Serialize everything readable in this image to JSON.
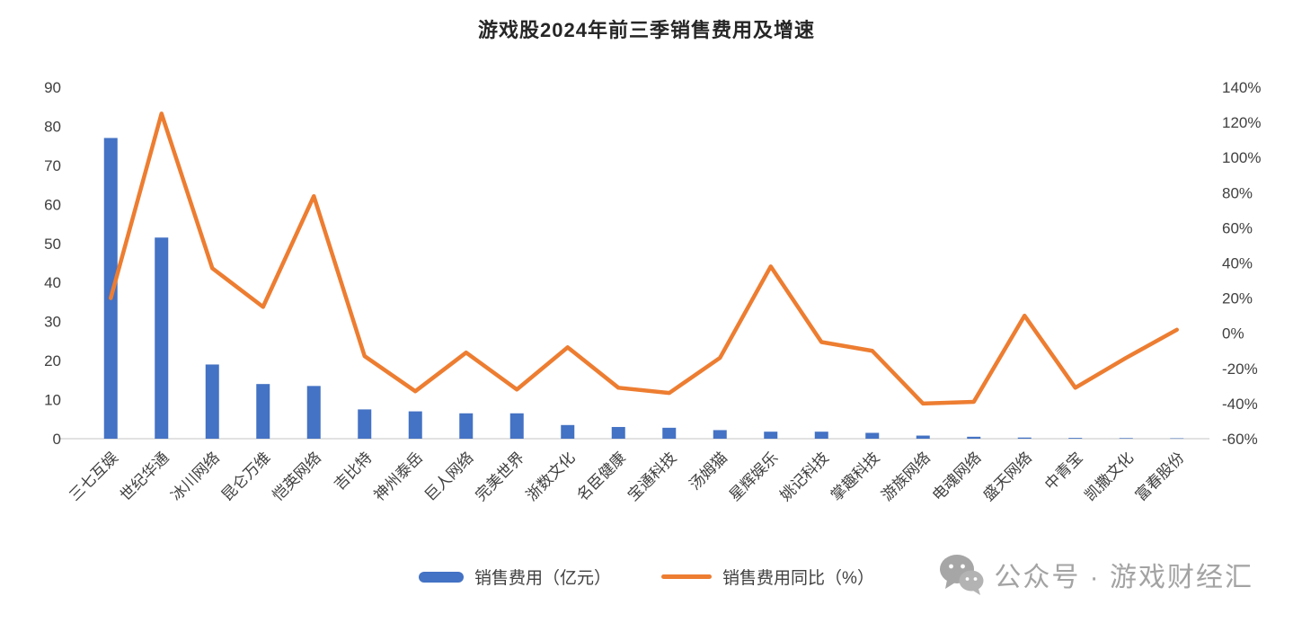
{
  "title": "游戏股2024年前三季销售费用及增速",
  "legend": {
    "bar_label": "销售费用（亿元）",
    "line_label": "销售费用同比（%）"
  },
  "watermark": {
    "icon": "wechat-icon",
    "text": "公众号 · 游戏财经汇"
  },
  "colors": {
    "bar": "#4472C4",
    "line": "#ED7D31",
    "axis_text": "#404040",
    "axis_line": "#D9D9D9",
    "watermark": "#a6a6a6"
  },
  "chart_data": {
    "type": "bar+line",
    "title": "游戏股2024年前三季销售费用及增速",
    "categories": [
      "三七互娱",
      "世纪华通",
      "冰川网络",
      "昆仑万维",
      "恺英网络",
      "吉比特",
      "神州泰岳",
      "巨人网络",
      "完美世界",
      "浙数文化",
      "名臣健康",
      "宝通科技",
      "汤姆猫",
      "星辉娱乐",
      "姚记科技",
      "掌趣科技",
      "游族网络",
      "电魂网络",
      "盛天网络",
      "中青宝",
      "凯撒文化",
      "富春股份"
    ],
    "series": [
      {
        "name": "销售费用（亿元）",
        "type": "bar",
        "axis": "left",
        "values": [
          77,
          51.5,
          19,
          14,
          13.5,
          7.5,
          7,
          6.5,
          6.5,
          3.5,
          3,
          2.8,
          2.2,
          1.8,
          1.8,
          1.5,
          0.8,
          0.5,
          0.3,
          0.2,
          0.15,
          0.1
        ]
      },
      {
        "name": "销售费用同比（%）",
        "type": "line",
        "axis": "right",
        "values": [
          20,
          125,
          37,
          15,
          78,
          -13,
          -33,
          -11,
          -32,
          -8,
          -31,
          -34,
          -14,
          38,
          -5,
          -10,
          -40,
          -39,
          10,
          -31,
          -14,
          2
        ]
      }
    ],
    "left_axis": {
      "range": [
        0,
        90
      ],
      "ticks": [
        0,
        10,
        20,
        30,
        40,
        50,
        60,
        70,
        80,
        90
      ]
    },
    "right_axis": {
      "range_percent": [
        -60,
        140
      ],
      "ticks": [
        "-60%",
        "-40%",
        "-20%",
        "0%",
        "20%",
        "40%",
        "60%",
        "80%",
        "100%",
        "120%",
        "140%"
      ]
    },
    "grid": false,
    "legend_position": "bottom"
  }
}
